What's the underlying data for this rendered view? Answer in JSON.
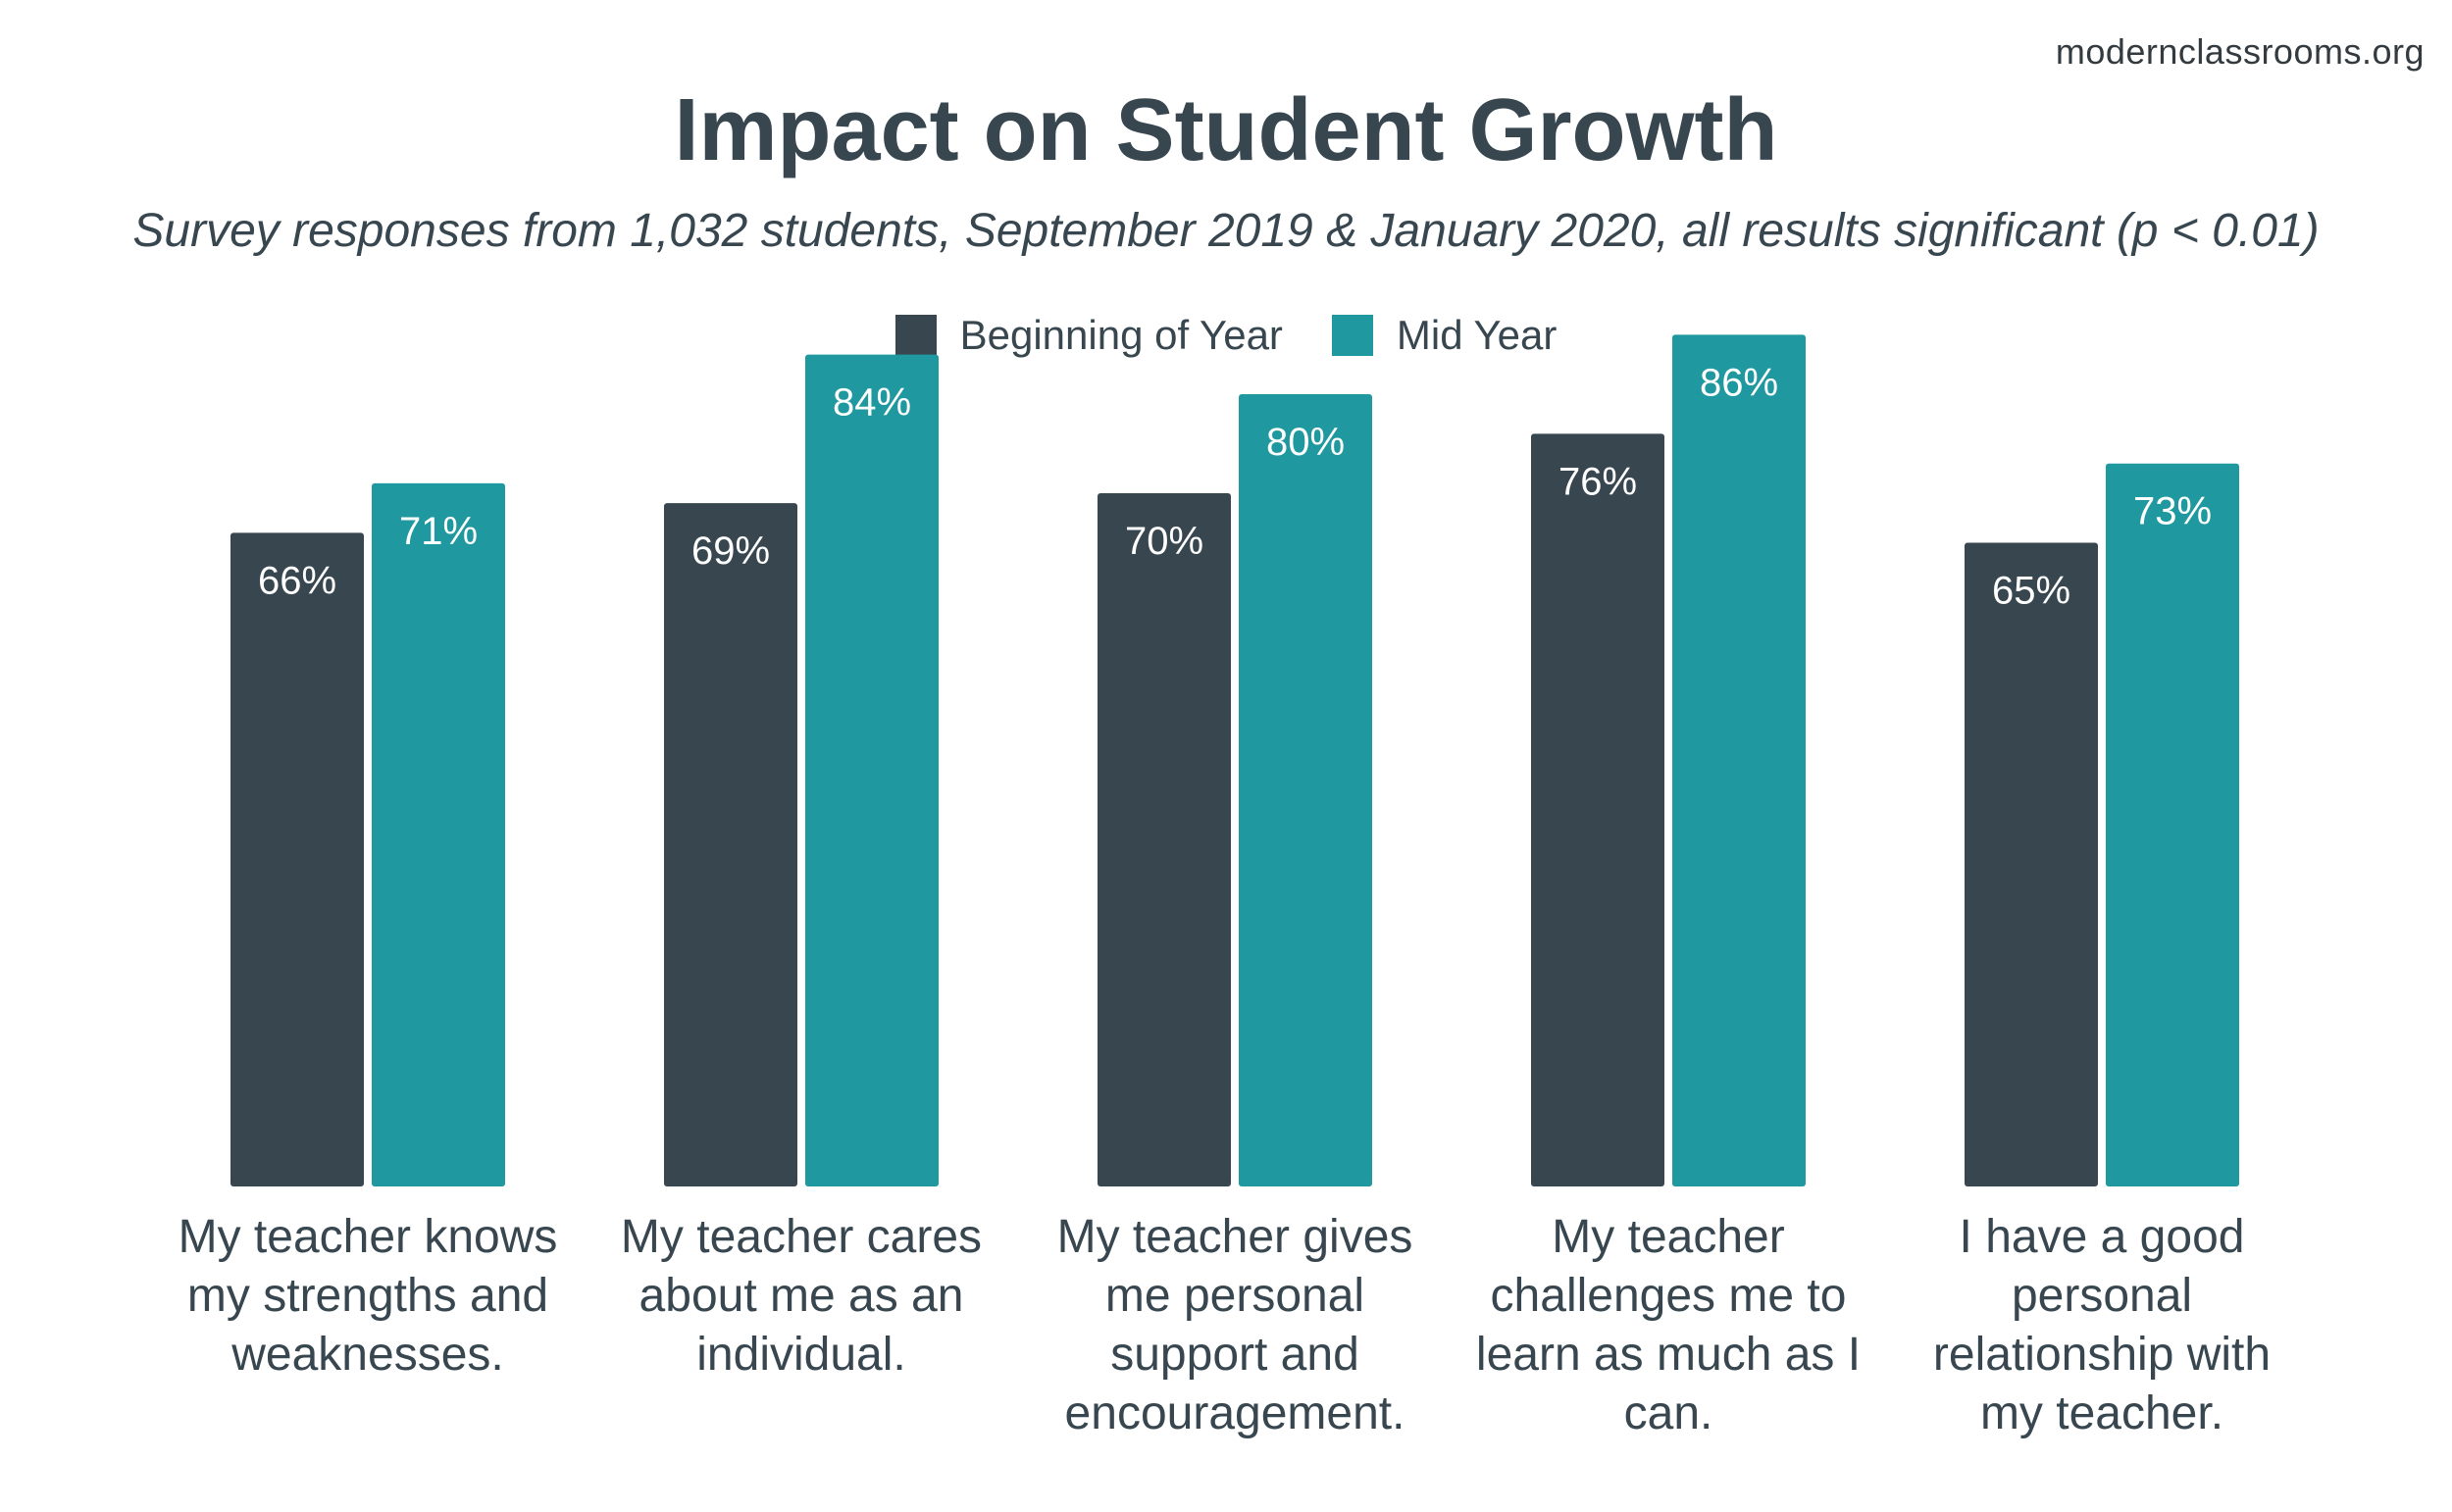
{
  "source": "modernclassrooms.org",
  "chart_data": {
    "type": "bar",
    "title": "Impact on Student Growth",
    "subtitle": "Survey responses from 1,032 students, September 2019 & January 2020, all results significant (p < 0.01)",
    "categories": [
      "My teacher knows my strengths and weaknesses.",
      "My teacher cares about me as an individual.",
      "My teacher gives me personal support and encouragement.",
      "My teacher challenges me to learn as much as I can.",
      "I have a good personal relationship with my teacher."
    ],
    "series": [
      {
        "name": "Beginning of Year",
        "color": "#37464f",
        "values": [
          66,
          69,
          70,
          76,
          65
        ],
        "labels": [
          "66%",
          "69%",
          "70%",
          "76%",
          "65%"
        ]
      },
      {
        "name": "Mid Year",
        "color": "#1f98a0",
        "values": [
          71,
          84,
          80,
          86,
          73
        ],
        "labels": [
          "71%",
          "84%",
          "80%",
          "86%",
          "73%"
        ]
      }
    ],
    "ylim": [
      0,
      100
    ],
    "grid": false,
    "legend_position": "top-center",
    "xlabel": "",
    "ylabel": ""
  }
}
